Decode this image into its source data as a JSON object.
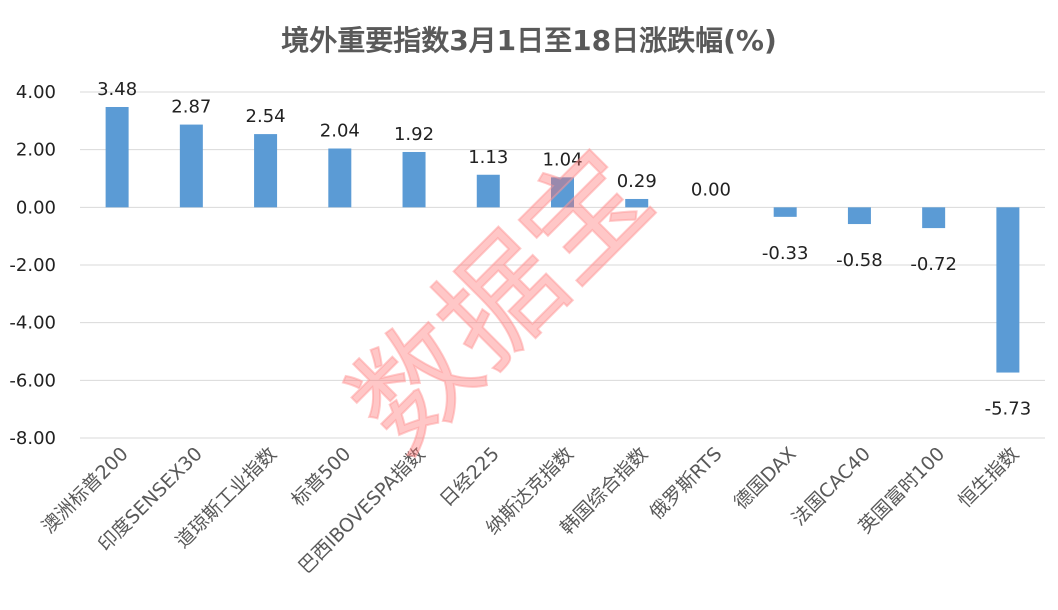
{
  "chart_data": {
    "type": "bar",
    "title": "境外重要指数3月1日至18日涨跌幅(%)",
    "categories": [
      "澳洲标普200",
      "印度SENSEX30",
      "道琼斯工业指数",
      "标普500",
      "巴西IBOVESPA指数",
      "日经225",
      "纳斯达克指数",
      "韩国综合指数",
      "俄罗斯RTS",
      "德国DAX",
      "法国CAC40",
      "英国富时100",
      "恒生指数"
    ],
    "values": [
      3.48,
      2.87,
      2.54,
      2.04,
      1.92,
      1.13,
      1.04,
      0.29,
      0.0,
      -0.33,
      -0.58,
      -0.72,
      -5.73
    ],
    "data_labels": [
      "3.48",
      "2.87",
      "2.54",
      "2.04",
      "1.92",
      "1.13",
      "1.04",
      "0.29",
      "0.00",
      "-0.33",
      "-0.58",
      "-0.72",
      "-5.73"
    ],
    "ylim": [
      -8,
      4
    ],
    "yticks": [
      4,
      2,
      0,
      -2,
      -4,
      -6,
      -8
    ],
    "ytick_labels": [
      "4.00",
      "2.00",
      "0.00",
      "-2.00",
      "-4.00",
      "-6.00",
      "-8.00"
    ],
    "xlabel": "",
    "ylabel": "",
    "grid": true,
    "bar_color": "#5b9bd5",
    "grid_color": "#d9d9d9"
  },
  "watermark": {
    "text": "数据宝",
    "color": "#ff6b6b"
  }
}
